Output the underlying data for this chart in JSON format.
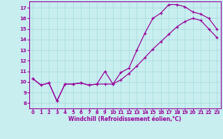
{
  "xlabel": "Windchill (Refroidissement éolien,°C)",
  "bg_color": "#c8eef0",
  "grid_color": "#aadddd",
  "line_color": "#990099",
  "xlim": [
    -0.5,
    23.5
  ],
  "ylim": [
    7.5,
    17.6
  ],
  "xticks": [
    0,
    1,
    2,
    3,
    4,
    5,
    6,
    7,
    8,
    9,
    10,
    11,
    12,
    13,
    14,
    15,
    16,
    17,
    18,
    19,
    20,
    21,
    22,
    23
  ],
  "yticks": [
    8,
    9,
    10,
    11,
    12,
    13,
    14,
    15,
    16,
    17
  ],
  "line1_x": [
    0,
    1,
    2,
    3,
    4,
    5,
    6,
    7,
    8,
    9,
    10,
    11,
    12,
    13,
    14,
    15,
    16,
    17,
    18,
    19,
    20,
    21,
    22,
    23
  ],
  "line1_y": [
    10.3,
    9.7,
    9.9,
    8.2,
    9.8,
    9.8,
    9.9,
    9.7,
    9.8,
    11.0,
    9.8,
    10.9,
    11.3,
    13.0,
    14.6,
    16.0,
    16.5,
    17.3,
    17.3,
    17.1,
    16.6,
    16.4,
    16.0,
    15.0
  ],
  "line2_x": [
    0,
    1,
    2,
    3,
    4,
    5,
    6,
    7,
    8,
    9,
    10,
    11,
    12,
    13,
    14,
    15,
    16,
    17,
    18,
    19,
    20,
    21,
    22,
    23
  ],
  "line2_y": [
    10.3,
    9.7,
    9.9,
    8.2,
    9.8,
    9.8,
    9.9,
    9.7,
    9.8,
    9.8,
    9.8,
    10.2,
    10.8,
    11.5,
    12.3,
    13.1,
    13.8,
    14.5,
    15.2,
    15.7,
    16.0,
    15.8,
    15.0,
    14.2
  ]
}
